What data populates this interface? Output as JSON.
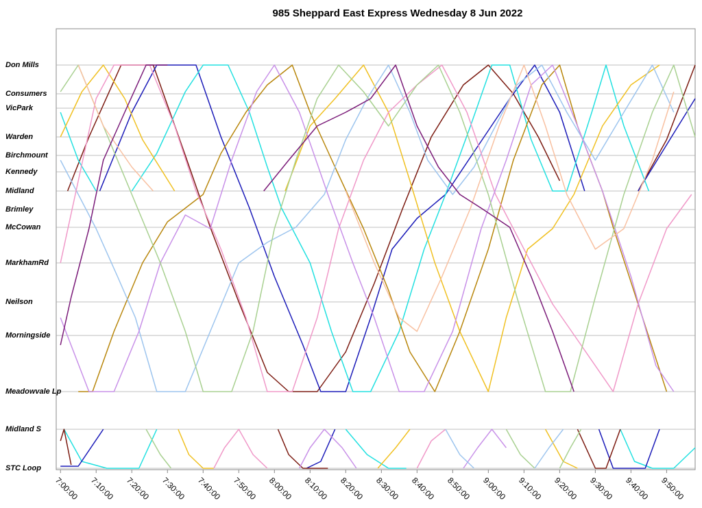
{
  "chart_data": {
    "type": "line",
    "title": "985 Sheppard East Express Wednesday 8 Jun 2022",
    "xlim": [
      418.8,
      598
    ],
    "ylim": [
      -0.2,
      64.2
    ],
    "grid": true,
    "xticks": [
      {
        "value": 420,
        "label": "7:00:00"
      },
      {
        "value": 430,
        "label": "7:10:00"
      },
      {
        "value": 440,
        "label": "7:20:00"
      },
      {
        "value": 450,
        "label": "7:30:00"
      },
      {
        "value": 460,
        "label": "7:40:00"
      },
      {
        "value": 470,
        "label": "7:50:00"
      },
      {
        "value": 480,
        "label": "8:00:00"
      },
      {
        "value": 490,
        "label": "8:10:00"
      },
      {
        "value": 500,
        "label": "8:20:00"
      },
      {
        "value": 510,
        "label": "8:30:00"
      },
      {
        "value": 520,
        "label": "8:40:00"
      },
      {
        "value": 530,
        "label": "8:50:00"
      },
      {
        "value": 540,
        "label": "9:00:00"
      },
      {
        "value": 550,
        "label": "9:10:00"
      },
      {
        "value": 560,
        "label": "9:20:00"
      },
      {
        "value": 570,
        "label": "9:30:00"
      },
      {
        "value": 580,
        "label": "9:40:00"
      },
      {
        "value": 590,
        "label": "9:50:00"
      }
    ],
    "yticks": [
      {
        "value": 58.9,
        "label": "Don Mills"
      },
      {
        "value": 54.7,
        "label": "Consumers"
      },
      {
        "value": 52.6,
        "label": "VicPark"
      },
      {
        "value": 48.4,
        "label": "Warden"
      },
      {
        "value": 45.7,
        "label": "Birchmount"
      },
      {
        "value": 43.3,
        "label": "Kennedy"
      },
      {
        "value": 40.5,
        "label": "Midland"
      },
      {
        "value": 37.8,
        "label": "Brimley"
      },
      {
        "value": 35.2,
        "label": "McCowan"
      },
      {
        "value": 30,
        "label": "MarkhamRd"
      },
      {
        "value": 24.3,
        "label": "Neilson"
      },
      {
        "value": 19.4,
        "label": "Morningside"
      },
      {
        "value": 11.2,
        "label": "Meadowvale Lp"
      },
      {
        "value": 5.7,
        "label": "Midland S"
      },
      {
        "value": 0,
        "label": "STC Loop"
      }
    ],
    "series": [
      {
        "color": "#7b1a10",
        "x": [
          422,
          428,
          437,
          446,
          455,
          462,
          470,
          478,
          484,
          492,
          500,
          508,
          516,
          524,
          533,
          540,
          547,
          554,
          560,
          null,
          582,
          590,
          598
        ],
        "values": [
          40.5,
          48.4,
          58.9,
          58.9,
          45.7,
          35.2,
          24.3,
          14,
          11.2,
          11.2,
          17,
          27,
          38,
          48.4,
          56,
          58.9,
          54.7,
          48.4,
          42,
          null,
          40.5,
          48,
          58.9
        ]
      },
      {
        "color": "#1a1ab8",
        "x": [
          431,
          440,
          447,
          458,
          465,
          473,
          480,
          488,
          493,
          500,
          507,
          513,
          520,
          528,
          537,
          546,
          553,
          560,
          567,
          null,
          582,
          598
        ],
        "values": [
          40.5,
          52,
          58.9,
          58.9,
          48.4,
          38,
          28,
          18,
          11.2,
          11.2,
          22,
          32,
          36.5,
          40,
          47,
          54,
          58.9,
          52,
          40.5,
          null,
          40.5,
          54
        ]
      },
      {
        "color": "#20e0e0",
        "x": [
          420,
          425,
          430,
          null,
          440,
          447,
          455,
          460,
          467,
          473,
          478,
          482,
          490,
          496,
          502,
          507,
          515,
          522,
          528,
          535,
          541,
          546,
          552,
          558,
          562,
          569,
          573,
          578,
          585
        ],
        "values": [
          52,
          45,
          40.5,
          null,
          40.5,
          46,
          55,
          58.9,
          58.9,
          52,
          44,
          38,
          30,
          20,
          11.2,
          11.2,
          20,
          32,
          40,
          50,
          58.9,
          58.9,
          48,
          40.5,
          40.5,
          52,
          58.9,
          50,
          40.5
        ]
      },
      {
        "color": "#f0c020",
        "x": [
          420,
          426,
          432,
          438,
          443,
          452,
          null,
          483,
          490,
          497,
          505,
          512,
          518,
          525,
          532,
          540,
          545,
          551,
          558,
          564,
          572,
          580,
          588
        ],
        "values": [
          48.4,
          55,
          58.9,
          54,
          48,
          40.5,
          null,
          40.5,
          50,
          54,
          58.9,
          52,
          42,
          30,
          20,
          11.2,
          22,
          32,
          35,
          40,
          50,
          56,
          58.9
        ]
      },
      {
        "color": "#b8860b",
        "x": [
          425,
          429,
          435,
          443,
          450,
          460,
          465,
          472,
          478,
          485,
          490,
          497,
          505,
          512,
          518,
          525,
          532,
          540,
          547,
          555,
          560,
          565,
          572,
          575,
          582,
          590
        ],
        "values": [
          11.2,
          11.2,
          20,
          30,
          36,
          40,
          46,
          52,
          56,
          58.9,
          52,
          44,
          35,
          26,
          17,
          11.2,
          20,
          32,
          45,
          56,
          58.9,
          50,
          40.5,
          35.2,
          24,
          11.2
        ]
      },
      {
        "color": "#9cc4ee",
        "x": [
          420,
          430,
          436,
          441,
          447,
          455,
          462,
          470,
          478,
          486,
          494,
          500,
          506,
          512,
          518,
          523,
          530,
          536,
          542,
          548,
          555,
          562,
          570,
          578,
          586,
          592
        ],
        "values": [
          45,
          35,
          28,
          22,
          11.2,
          11.2,
          20,
          30,
          33,
          35.2,
          40,
          48,
          54,
          58.9,
          52,
          45,
          40,
          44,
          50,
          56,
          58.9,
          52,
          45,
          52,
          58.9,
          52
        ]
      },
      {
        "color": "#f098c8",
        "x": [
          420,
          425,
          430,
          435,
          445,
          452,
          458,
          465,
          472,
          478,
          485,
          492,
          498,
          505,
          512,
          520,
          527,
          534,
          542,
          550,
          558,
          566,
          575,
          582,
          590,
          597
        ],
        "values": [
          30,
          42,
          54,
          58.9,
          58.9,
          50,
          40.5,
          32,
          22,
          11.2,
          11.2,
          22,
          35,
          45,
          52,
          56,
          58.9,
          52,
          40,
          32,
          24,
          18,
          11.2,
          24,
          35,
          40
        ]
      },
      {
        "color": "#c890e8",
        "x": [
          420,
          428,
          435,
          442,
          448,
          455,
          462,
          468,
          475,
          480,
          487,
          495,
          502,
          508,
          515,
          522,
          530,
          538,
          545,
          552,
          558,
          565,
          572,
          580,
          587,
          592
        ],
        "values": [
          22,
          11.2,
          11.2,
          20,
          30,
          37,
          35,
          45,
          55,
          58.9,
          52,
          40,
          30,
          22,
          11.2,
          11.2,
          20,
          35,
          45,
          56,
          58.9,
          50,
          40.5,
          28,
          15,
          11.2
        ]
      },
      {
        "color": "#a8d090",
        "x": [
          420,
          425,
          432,
          440,
          448,
          455,
          460,
          468,
          474,
          480,
          486,
          492,
          498,
          505,
          512,
          520,
          526,
          532,
          540,
          548,
          556,
          563,
          570,
          578,
          586,
          592,
          598
        ],
        "values": [
          55,
          58.9,
          50,
          40,
          30,
          20,
          11.2,
          11.2,
          20,
          35,
          45,
          54,
          58.9,
          55,
          50,
          56,
          58.9,
          52,
          40,
          25,
          11.2,
          11.2,
          25,
          40,
          52,
          58.9,
          48.4
        ]
      },
      {
        "color": "#f8c0a0",
        "x": [
          425,
          432,
          440,
          446,
          null,
          500,
          508,
          515,
          520,
          527,
          535,
          543,
          550,
          556,
          562,
          570,
          578,
          586,
          592
        ],
        "values": [
          58.9,
          50,
          44,
          40.5,
          null,
          40.5,
          30,
          22,
          20,
          28,
          38,
          50,
          58.9,
          50,
          40,
          32,
          35,
          45,
          55
        ]
      },
      {
        "color": "#7a1a78",
        "x": [
          420,
          423,
          428,
          432,
          438,
          444,
          450,
          null,
          477,
          484,
          492,
          500,
          507,
          514,
          520,
          526,
          532,
          538,
          546,
          552,
          558,
          564
        ],
        "values": [
          18,
          25,
          35,
          45,
          52,
          58.9,
          58.9,
          null,
          40.5,
          45,
          50,
          52,
          54,
          58.9,
          50,
          44,
          40,
          38,
          35.2,
          28,
          20,
          11.2
        ]
      },
      {
        "color": "#20e0e0",
        "x": [
          421,
          426,
          433,
          442,
          447,
          null,
          500,
          506,
          512,
          517,
          null,
          577,
          581,
          586,
          592,
          598
        ],
        "values": [
          5.7,
          1,
          0,
          0,
          5.7,
          null,
          5.7,
          2,
          0,
          0,
          null,
          5.7,
          1,
          0,
          0,
          3
        ]
      },
      {
        "color": "#1a1ab8",
        "x": [
          420,
          425,
          432,
          null,
          489,
          493,
          497,
          null,
          571,
          575,
          584,
          588
        ],
        "values": [
          0.3,
          0.3,
          5.7,
          null,
          0,
          1,
          5.7,
          null,
          5.7,
          0,
          0,
          5.7
        ]
      },
      {
        "color": "#7b1a10",
        "x": [
          420,
          421,
          423,
          null,
          481,
          484,
          488,
          495,
          null,
          565,
          570,
          573,
          577
        ],
        "values": [
          4,
          5.7,
          0.5,
          null,
          5.7,
          2,
          0,
          0,
          null,
          5.7,
          0,
          0,
          5.7
        ]
      },
      {
        "color": "#f0c020",
        "x": [
          453,
          456,
          460,
          463,
          null,
          509,
          514,
          518,
          null,
          556,
          561,
          565
        ],
        "values": [
          5.7,
          2,
          0,
          0,
          null,
          0,
          3,
          5.7,
          null,
          5.7,
          1,
          0
        ]
      },
      {
        "color": "#f098c8",
        "x": [
          463,
          466,
          470,
          474,
          478,
          null,
          520,
          524,
          528
        ],
        "values": [
          0,
          3,
          5.7,
          2,
          0,
          null,
          0,
          4,
          5.7
        ]
      },
      {
        "color": "#c890e8",
        "x": [
          487,
          490,
          494,
          499,
          503,
          null,
          533,
          537,
          541,
          545
        ],
        "values": [
          0,
          3,
          5.7,
          3,
          0,
          null,
          0,
          3,
          5.7,
          3
        ]
      },
      {
        "color": "#a8d090",
        "x": [
          444,
          448,
          451,
          null,
          545,
          549,
          553,
          null,
          560,
          563,
          566
        ],
        "values": [
          5.7,
          2,
          0,
          null,
          5.7,
          2,
          0,
          null,
          0,
          3,
          5.7
        ]
      },
      {
        "color": "#9cc4ee",
        "x": [
          528,
          532,
          536,
          null,
          553,
          557,
          561
        ],
        "values": [
          5.7,
          2,
          0,
          null,
          0,
          3,
          5.7
        ]
      }
    ]
  }
}
